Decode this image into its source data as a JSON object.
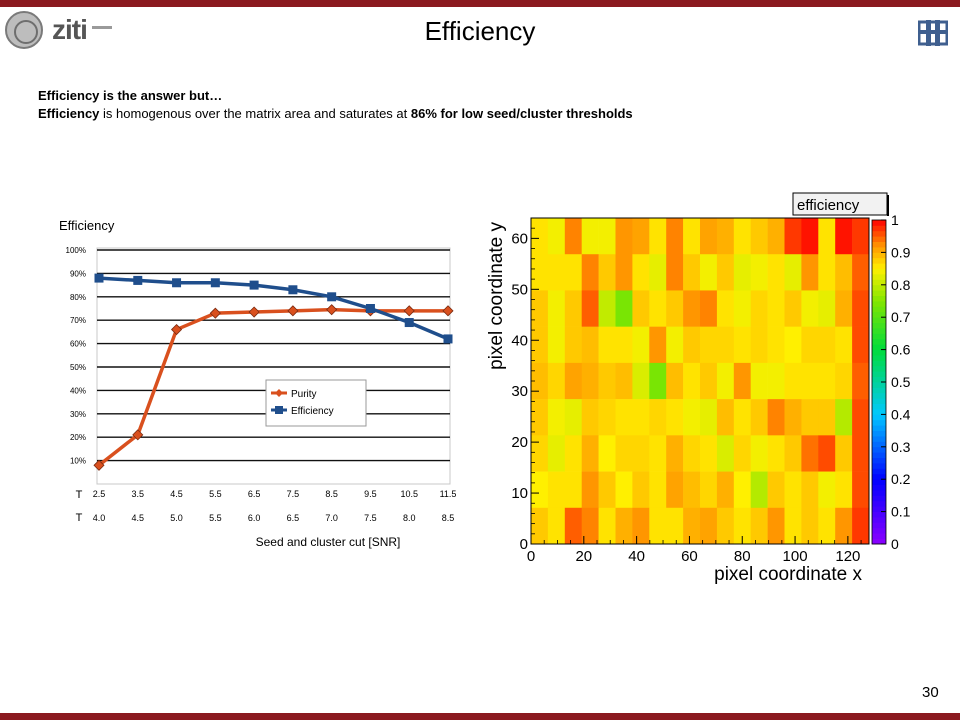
{
  "slide": {
    "title": "Efficiency",
    "page_number": "30",
    "logo_text": "ziti",
    "line1": "Efficiency is the answer but…",
    "line2_b1": "Efficiency",
    "line2_t1": " is homogenous over the matrix area and saturates at ",
    "line2_b2": "86% for low seed/cluster thresholds",
    "colors": {
      "bar": "#8b1a1f",
      "purity": "#d9501e",
      "efficiency": "#1f4e8c"
    }
  },
  "chart_data": [
    {
      "type": "line",
      "title": "Efficiency",
      "xlabel": "Seed and cluster cut [SNR]",
      "ylabel": "",
      "y_ticks": [
        "100%",
        "90%",
        "80%",
        "70%",
        "60%",
        "50%",
        "40%",
        "30%",
        "20%",
        "10%"
      ],
      "ylim": [
        0,
        100
      ],
      "x_row_symbols": [
        "T",
        "T"
      ],
      "x_ticks_seed": [
        "2.5",
        "3.5",
        "4.5",
        "5.5",
        "6.5",
        "7.5",
        "8.5",
        "9.5",
        "10.5",
        "11.5"
      ],
      "x_ticks_cluster": [
        "4.0",
        "4.5",
        "5.0",
        "5.5",
        "6.0",
        "6.5",
        "7.0",
        "7.5",
        "8.0",
        "8.5"
      ],
      "grid": true,
      "legend_position": "center-right",
      "series": [
        {
          "name": "Purity",
          "color": "#d9501e",
          "marker": "diamond",
          "values": [
            8,
            21,
            66,
            73,
            73.5,
            74,
            74.5,
            74,
            74,
            74
          ]
        },
        {
          "name": "Efficiency",
          "color": "#1f4e8c",
          "marker": "square",
          "values": [
            88,
            87,
            86,
            86,
            85,
            83,
            80,
            75,
            69,
            62
          ]
        }
      ]
    },
    {
      "type": "heatmap",
      "title": "efficiency",
      "xlabel": "pixel coordinate x",
      "ylabel": "pixel coordinate y",
      "xlim": [
        0,
        128
      ],
      "ylim": [
        0,
        64
      ],
      "x_ticks": [
        0,
        20,
        40,
        60,
        80,
        100,
        120
      ],
      "y_ticks": [
        0,
        10,
        20,
        30,
        40,
        50,
        60
      ],
      "colorbar_ticks": [
        "0",
        "0.1",
        "0.2",
        "0.3",
        "0.4",
        "0.5",
        "0.6",
        "0.7",
        "0.8",
        "0.9",
        "1"
      ],
      "colorbar_range": [
        0,
        1
      ],
      "x_bins": 20,
      "y_bins": 9,
      "rows_top_to_bottom": [
        [
          0.86,
          0.84,
          0.93,
          0.84,
          0.84,
          0.92,
          0.91,
          0.86,
          0.93,
          0.86,
          0.91,
          0.9,
          0.86,
          0.88,
          0.9,
          0.97,
          0.99,
          0.86,
          0.99,
          0.97
        ],
        [
          0.86,
          0.86,
          0.86,
          0.93,
          0.88,
          0.92,
          0.86,
          0.83,
          0.93,
          0.88,
          0.84,
          0.88,
          0.83,
          0.84,
          0.86,
          0.83,
          0.92,
          0.86,
          0.89,
          0.95
        ],
        [
          0.88,
          0.84,
          0.88,
          0.95,
          0.8,
          0.74,
          0.88,
          0.86,
          0.88,
          0.92,
          0.93,
          0.86,
          0.84,
          0.87,
          0.86,
          0.88,
          0.84,
          0.83,
          0.9,
          0.96
        ],
        [
          0.88,
          0.84,
          0.88,
          0.89,
          0.86,
          0.86,
          0.84,
          0.92,
          0.84,
          0.88,
          0.87,
          0.87,
          0.86,
          0.87,
          0.86,
          0.85,
          0.87,
          0.87,
          0.86,
          0.96
        ],
        [
          0.89,
          0.87,
          0.91,
          0.9,
          0.88,
          0.89,
          0.82,
          0.74,
          0.89,
          0.86,
          0.88,
          0.84,
          0.92,
          0.84,
          0.84,
          0.86,
          0.86,
          0.86,
          0.87,
          0.95
        ],
        [
          0.88,
          0.84,
          0.83,
          0.88,
          0.87,
          0.86,
          0.86,
          0.87,
          0.86,
          0.84,
          0.83,
          0.89,
          0.86,
          0.88,
          0.93,
          0.9,
          0.88,
          0.88,
          0.79,
          0.96
        ],
        [
          0.87,
          0.83,
          0.86,
          0.9,
          0.85,
          0.87,
          0.87,
          0.86,
          0.9,
          0.87,
          0.86,
          0.82,
          0.87,
          0.84,
          0.86,
          0.88,
          0.94,
          0.96,
          0.88,
          0.96
        ],
        [
          0.85,
          0.86,
          0.86,
          0.92,
          0.88,
          0.85,
          0.88,
          0.86,
          0.91,
          0.89,
          0.87,
          0.9,
          0.85,
          0.79,
          0.88,
          0.86,
          0.88,
          0.84,
          0.86,
          0.96
        ],
        [
          0.88,
          0.86,
          0.95,
          0.93,
          0.86,
          0.9,
          0.92,
          0.86,
          0.86,
          0.9,
          0.91,
          0.88,
          0.86,
          0.88,
          0.92,
          0.86,
          0.88,
          0.86,
          0.92,
          0.97
        ]
      ]
    }
  ]
}
